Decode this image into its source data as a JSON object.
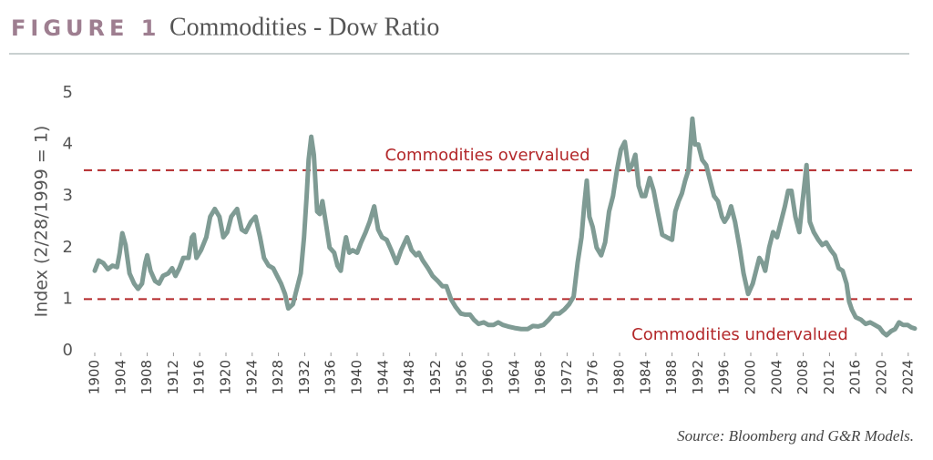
{
  "chart_data": {
    "type": "line",
    "figure_label": "FIGURE 1",
    "title": "Commodities - Dow Ratio",
    "y_label": "Index (2/28/1999 = 1)",
    "source": "Source: Bloomberg and G&R Models.",
    "color": "#7f9b94",
    "xlim": [
      1900,
      2025
    ],
    "ylim": [
      0,
      5
    ],
    "yticks": [
      0,
      1,
      2,
      3,
      4,
      5
    ],
    "xticks": [
      1900,
      1904,
      1908,
      1912,
      1916,
      1920,
      1924,
      1928,
      1932,
      1936,
      1940,
      1944,
      1948,
      1952,
      1956,
      1960,
      1964,
      1968,
      1972,
      1976,
      1980,
      1984,
      1988,
      1992,
      1996,
      2000,
      2004,
      2008,
      2012,
      2016,
      2020,
      2024
    ],
    "reference_lines": [
      {
        "value": 3.5,
        "label": "Commodities overvalued",
        "color": "#b3282a"
      },
      {
        "value": 1,
        "label": "Commodities undervalued",
        "color": "#b3282a"
      }
    ],
    "x": [
      1900,
      1900.6,
      1901.3,
      1902,
      1902.7,
      1903.4,
      1903.8,
      1904.2,
      1904.7,
      1905.3,
      1906,
      1906.6,
      1907.2,
      1907.7,
      1908,
      1908.5,
      1909.2,
      1909.8,
      1910.4,
      1911.2,
      1911.8,
      1912.3,
      1912.9,
      1913.5,
      1914.3,
      1914.8,
      1915.1,
      1915.5,
      1916.2,
      1917,
      1917.6,
      1918.3,
      1919,
      1919.6,
      1920.2,
      1920.8,
      1921.7,
      1922.4,
      1923,
      1923.8,
      1924.5,
      1925.2,
      1925.8,
      1926.5,
      1927.2,
      1927.8,
      1928.4,
      1929,
      1929.5,
      1930.2,
      1930.8,
      1931.4,
      1931.9,
      1932.3,
      1932.6,
      1933,
      1933.4,
      1933.9,
      1934.3,
      1934.7,
      1935.2,
      1935.8,
      1936.5,
      1937,
      1937.5,
      1938,
      1938.3,
      1938.8,
      1939.3,
      1940,
      1940.6,
      1941.3,
      1941.9,
      1942.6,
      1943.2,
      1943.8,
      1944.5,
      1945.2,
      1946,
      1946.7,
      1947.6,
      1948.3,
      1949,
      1949.4,
      1950,
      1950.8,
      1951.5,
      1952.3,
      1953,
      1953.6,
      1954.3,
      1955,
      1955.8,
      1956.5,
      1957.2,
      1957.8,
      1958.5,
      1959.3,
      1960,
      1960.8,
      1961.5,
      1962.2,
      1963,
      1964,
      1965,
      1966,
      1966.8,
      1967.6,
      1968.4,
      1969.2,
      1970,
      1970.8,
      1971.6,
      1972.3,
      1973,
      1973.6,
      1974.2,
      1974.6,
      1975,
      1975.4,
      1975.9,
      1976.5,
      1977.2,
      1977.8,
      1978.4,
      1979,
      1979.6,
      1980.2,
      1980.8,
      1981.4,
      1981.9,
      1982.4,
      1982.9,
      1983.4,
      1983.9,
      1984.6,
      1985.2,
      1985.8,
      1986.5,
      1987.2,
      1988,
      1988.5,
      1989,
      1989.5,
      1990,
      1990.5,
      1991.1,
      1991.5,
      1992,
      1992.6,
      1993.2,
      1993.8,
      1994.4,
      1995,
      1995.6,
      1996,
      1996.5,
      1997,
      1997.6,
      1998.3,
      1998.9,
      1999.6,
      2000.3,
      2000.9,
      2001.3,
      2001.8,
      2002.2,
      2002.8,
      2003.4,
      2004,
      2004.6,
      2005.2,
      2005.7,
      2006.2,
      2006.8,
      2007.4,
      2007.9,
      2008.5,
      2009,
      2009.6,
      2010.3,
      2010.9,
      2011.5,
      2012.2,
      2012.8,
      2013.4,
      2014,
      2014.6,
      2015,
      2015.4,
      2016,
      2016.8,
      2017.5,
      2018.2,
      2018.9,
      2019.6,
      2020.2,
      2020.7,
      2021.4,
      2022,
      2022.6,
      2023.2,
      2023.9,
      2024.5,
      2025
    ],
    "values": [
      1.55,
      1.75,
      1.7,
      1.58,
      1.65,
      1.62,
      1.9,
      2.28,
      2.05,
      1.5,
      1.3,
      1.2,
      1.3,
      1.7,
      1.85,
      1.55,
      1.35,
      1.3,
      1.45,
      1.5,
      1.6,
      1.45,
      1.6,
      1.8,
      1.8,
      2.2,
      2.25,
      1.8,
      1.95,
      2.2,
      2.6,
      2.75,
      2.6,
      2.2,
      2.3,
      2.6,
      2.75,
      2.35,
      2.3,
      2.5,
      2.6,
      2.2,
      1.8,
      1.65,
      1.6,
      1.45,
      1.3,
      1.1,
      0.82,
      0.9,
      1.2,
      1.5,
      2.2,
      3.0,
      3.7,
      4.15,
      3.8,
      2.7,
      2.65,
      2.9,
      2.5,
      2.0,
      1.9,
      1.65,
      1.55,
      2.0,
      2.2,
      1.9,
      1.95,
      1.9,
      2.1,
      2.3,
      2.5,
      2.8,
      2.35,
      2.2,
      2.15,
      1.95,
      1.7,
      1.95,
      2.2,
      1.95,
      1.85,
      1.9,
      1.75,
      1.6,
      1.45,
      1.35,
      1.25,
      1.25,
      1.0,
      0.85,
      0.72,
      0.7,
      0.7,
      0.6,
      0.52,
      0.55,
      0.5,
      0.5,
      0.55,
      0.5,
      0.47,
      0.44,
      0.42,
      0.42,
      0.48,
      0.47,
      0.5,
      0.6,
      0.72,
      0.72,
      0.8,
      0.9,
      1.05,
      1.7,
      2.2,
      2.8,
      3.3,
      2.6,
      2.4,
      2.0,
      1.85,
      2.1,
      2.7,
      3.0,
      3.5,
      3.9,
      4.05,
      3.5,
      3.6,
      3.8,
      3.2,
      3.0,
      3.0,
      3.35,
      3.1,
      2.7,
      2.25,
      2.2,
      2.15,
      2.7,
      2.9,
      3.05,
      3.3,
      3.5,
      4.5,
      4.0,
      4.0,
      3.7,
      3.6,
      3.3,
      3.0,
      2.9,
      2.6,
      2.5,
      2.6,
      2.8,
      2.5,
      2.0,
      1.5,
      1.1,
      1.3,
      1.6,
      1.8,
      1.7,
      1.55,
      2.0,
      2.3,
      2.2,
      2.5,
      2.8,
      3.1,
      3.1,
      2.6,
      2.3,
      2.9,
      3.6,
      2.5,
      2.3,
      2.15,
      2.05,
      2.1,
      1.95,
      1.85,
      1.6,
      1.55,
      1.3,
      0.95,
      0.8,
      0.65,
      0.6,
      0.52,
      0.55,
      0.5,
      0.45,
      0.35,
      0.3,
      0.38,
      0.42,
      0.55,
      0.5,
      0.5,
      0.45,
      0.43
    ]
  }
}
